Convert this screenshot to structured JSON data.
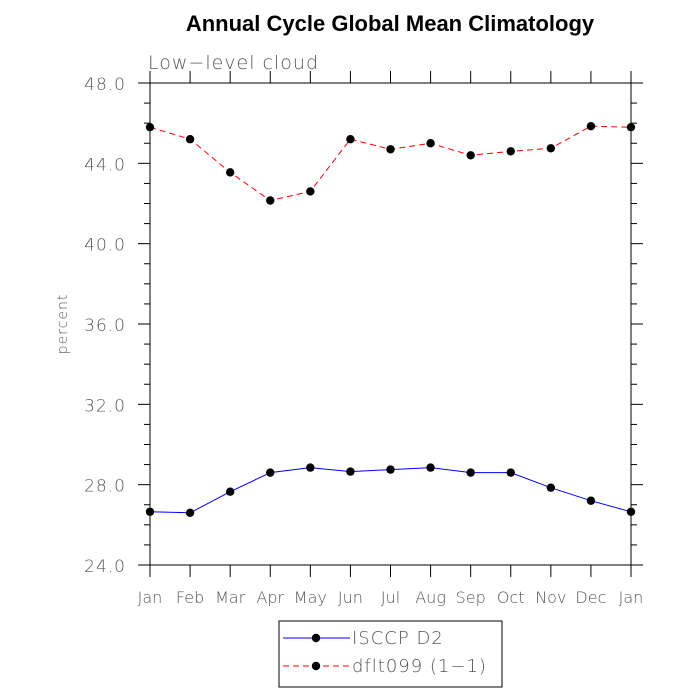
{
  "chart_data": {
    "type": "line",
    "title": "Annual Cycle Global Mean Climatology",
    "subtitle": "Low−level cloud",
    "xlabel": "",
    "ylabel": "percent",
    "categories": [
      "Jan",
      "Feb",
      "Mar",
      "Apr",
      "May",
      "Jun",
      "Jul",
      "Aug",
      "Sep",
      "Oct",
      "Nov",
      "Dec",
      "Jan"
    ],
    "yticks": [
      "24.0",
      "28.0",
      "32.0",
      "36.0",
      "40.0",
      "44.0",
      "48.0"
    ],
    "ylim": [
      24,
      48
    ],
    "series": [
      {
        "name": "ISCCP D2",
        "style": "solid",
        "color": "#0000ff",
        "values": [
          26.65,
          26.6,
          27.65,
          28.6,
          28.85,
          28.65,
          28.75,
          28.85,
          28.6,
          28.6,
          27.85,
          27.2,
          26.65
        ]
      },
      {
        "name": "dflt099 (1−1)",
        "style": "dashed",
        "color": "#ff0000",
        "values": [
          45.8,
          45.2,
          43.55,
          42.15,
          42.6,
          45.2,
          44.7,
          45.0,
          44.4,
          44.6,
          44.75,
          45.85,
          45.8
        ]
      }
    ],
    "legend": "bottom-center",
    "grid": false
  }
}
